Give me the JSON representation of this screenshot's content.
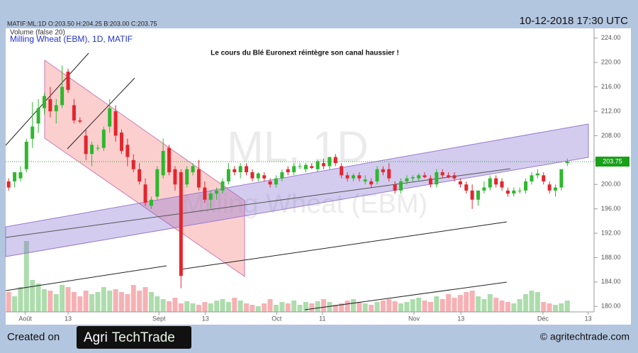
{
  "header": {
    "info": "MATIF:ML:1D O:203.50 H:204.25 B:203.00 C:203.75",
    "date": "10-12-2018 17:30 UTC"
  },
  "chart_data": {
    "type": "candlestick",
    "subtitle": "Volume (false 20)",
    "title": "Milling Wheat (EBM), 1D, MATIF",
    "annotation": "Le cours du Blé Euronext réintègre son canal haussier !",
    "watermark": [
      "ML, 1D",
      "Milling Wheat (EBM)"
    ],
    "up_color": "#2eb82e",
    "down_color": "#e3262e",
    "volume_up_color": "#9fd69f",
    "volume_down_color": "#f5a3a8",
    "last_color": "#18a018",
    "xlim": [
      -0.5,
      98.5
    ],
    "xticks": [
      {
        "value": 2.8,
        "label": "Août"
      },
      {
        "value": 10,
        "label": "13"
      },
      {
        "value": 25.3,
        "label": "Sept"
      },
      {
        "value": 33.1,
        "label": "13"
      },
      {
        "value": 45.1,
        "label": "Oct"
      },
      {
        "value": 52.8,
        "label": "11"
      },
      {
        "value": 68.2,
        "label": "Nov"
      },
      {
        "value": 76.1,
        "label": "13"
      },
      {
        "value": 89.9,
        "label": "Déc"
      },
      {
        "value": 97.5,
        "label": "13"
      }
    ],
    "ylim": [
      179.1,
      225.6
    ],
    "yticks": [
      {
        "value": 180,
        "label": "180.00"
      },
      {
        "value": 184,
        "label": "184.00"
      },
      {
        "value": 188,
        "label": "188.00"
      },
      {
        "value": 192,
        "label": "192.00"
      },
      {
        "value": 196,
        "label": "196.00"
      },
      {
        "value": 200,
        "label": "200.00"
      },
      {
        "value": 204,
        "label": "204.00"
      },
      {
        "value": 208,
        "label": "208.00"
      },
      {
        "value": 212,
        "label": "212.00"
      },
      {
        "value": 216,
        "label": "216.00"
      },
      {
        "value": 220,
        "label": "220.00"
      },
      {
        "value": 224,
        "label": "224.00"
      }
    ],
    "volume_ylim": [
      0,
      100
    ],
    "candles": [
      [
        200.5,
        201,
        199,
        199.5
      ],
      [
        200.5,
        202,
        199.5,
        202
      ],
      [
        201,
        203,
        200.5,
        202
      ],
      [
        202.5,
        207.5,
        202,
        207
      ],
      [
        207.5,
        213.5,
        206,
        209.5
      ],
      [
        210,
        214,
        208.5,
        212.5
      ],
      [
        212.5,
        215,
        211.5,
        214.5
      ],
      [
        214,
        216,
        211,
        212
      ],
      [
        212,
        214,
        210,
        213
      ],
      [
        213,
        219.5,
        212.5,
        216
      ],
      [
        218.5,
        219,
        215,
        215.5
      ],
      [
        213,
        214,
        210,
        210.5
      ],
      [
        210.5,
        211,
        210,
        210.3
      ],
      [
        208,
        209,
        204,
        205
      ],
      [
        205,
        207,
        203,
        206.5
      ],
      [
        206,
        206.5,
        205.5,
        206
      ],
      [
        206,
        209.5,
        205.5,
        209
      ],
      [
        209.5,
        214,
        208.5,
        212.5
      ],
      [
        212,
        213,
        207,
        208
      ],
      [
        208.5,
        209,
        205,
        205.5
      ],
      [
        206.5,
        207.5,
        203,
        204.5
      ],
      [
        204,
        205,
        202,
        202.5
      ],
      [
        202.5,
        203.5,
        200,
        200.5
      ],
      [
        200,
        201,
        196.5,
        197
      ],
      [
        196.5,
        198,
        196,
        197.5
      ],
      [
        198,
        203,
        197.5,
        202.5
      ],
      [
        201.5,
        207.5,
        201,
        205.5
      ],
      [
        206,
        206.5,
        201.5,
        202
      ],
      [
        202.5,
        203,
        199,
        200
      ],
      [
        202,
        202.5,
        183,
        185
      ],
      [
        200,
        203,
        199.5,
        202.5
      ],
      [
        202,
        203.5,
        201.5,
        203
      ],
      [
        202.5,
        204,
        199,
        199.5
      ],
      [
        199.5,
        200.5,
        197,
        197.5
      ],
      [
        197.5,
        199,
        196,
        198.5
      ],
      [
        198.5,
        199.5,
        197.5,
        199
      ],
      [
        199,
        201,
        198.5,
        200.5
      ],
      [
        200.5,
        203.5,
        200,
        202.5
      ],
      [
        202.5,
        203,
        201.5,
        202
      ],
      [
        202,
        203.5,
        201,
        203
      ],
      [
        203,
        203.5,
        201.5,
        202
      ],
      [
        202,
        202.5,
        200.5,
        201
      ],
      [
        201,
        202,
        200.5,
        201.8
      ],
      [
        201.5,
        202,
        200.5,
        201
      ],
      [
        200.5,
        201,
        199.5,
        200
      ],
      [
        200,
        201.5,
        199.5,
        201
      ],
      [
        201,
        202.5,
        200.5,
        202
      ],
      [
        202.5,
        203,
        201.5,
        202
      ],
      [
        202,
        203.5,
        201.5,
        203
      ],
      [
        203,
        203.5,
        202.5,
        203
      ],
      [
        202.5,
        203.5,
        202,
        203.2
      ],
      [
        203,
        203.5,
        202.5,
        202.7
      ],
      [
        202.5,
        204,
        202,
        203.8
      ],
      [
        203.5,
        204.2,
        202.5,
        203
      ],
      [
        203,
        204.5,
        202.5,
        204.5
      ],
      [
        204.5,
        205,
        203,
        203.5
      ],
      [
        203,
        203.5,
        201,
        201.5
      ],
      [
        201.5,
        202,
        200.5,
        201
      ],
      [
        201,
        201.8,
        200.5,
        201.5
      ],
      [
        201.5,
        202,
        200.5,
        201
      ],
      [
        200.5,
        201.5,
        200,
        200.8
      ],
      [
        200.5,
        201,
        199.5,
        200
      ],
      [
        200.5,
        203,
        200,
        202.5
      ],
      [
        202.5,
        203,
        201.5,
        202
      ],
      [
        202.5,
        203.5,
        200.5,
        201
      ],
      [
        200,
        200.5,
        198.5,
        199
      ],
      [
        199,
        201,
        198.5,
        200.5
      ],
      [
        200.5,
        201.5,
        200,
        201
      ],
      [
        201,
        201.5,
        200.5,
        201.2
      ],
      [
        201,
        201.8,
        200.5,
        201.5
      ],
      [
        201.5,
        202,
        201,
        201.2
      ],
      [
        201,
        201.5,
        199.5,
        200
      ],
      [
        200,
        202.5,
        199.5,
        202
      ],
      [
        202,
        202.5,
        201,
        201.5
      ],
      [
        201.5,
        202,
        201,
        201.2
      ],
      [
        201.5,
        202,
        200.5,
        201
      ],
      [
        200.5,
        201,
        199.5,
        200
      ],
      [
        200,
        200.5,
        198.5,
        199
      ],
      [
        199,
        200,
        196,
        197.5
      ],
      [
        197.5,
        199,
        196.5,
        199
      ],
      [
        199,
        200.5,
        198.5,
        199.5
      ],
      [
        199.5,
        201.5,
        199,
        201
      ],
      [
        201,
        201.5,
        199.5,
        200
      ],
      [
        200.5,
        201,
        199,
        199.5
      ],
      [
        199,
        199.5,
        198,
        198.5
      ],
      [
        198.5,
        199.5,
        198,
        199
      ],
      [
        199,
        199.5,
        198.5,
        199
      ],
      [
        199,
        201,
        198.5,
        200.5
      ],
      [
        200.5,
        202,
        200,
        201.5
      ],
      [
        201.5,
        202.5,
        201,
        201.8
      ],
      [
        201.5,
        202,
        200,
        200.5
      ],
      [
        200,
        200.5,
        198.5,
        199
      ],
      [
        199,
        200,
        198,
        199.5
      ],
      [
        199.5,
        202.5,
        199,
        202.5
      ],
      [
        203.5,
        204.25,
        203,
        203.75
      ]
    ],
    "volumes": [
      28,
      22,
      35,
      100,
      45,
      40,
      32,
      30,
      25,
      38,
      35,
      28,
      22,
      30,
      25,
      28,
      35,
      30,
      32,
      28,
      25,
      38,
      30,
      35,
      28,
      22,
      18,
      15,
      20,
      12,
      15,
      12,
      10,
      14,
      12,
      16,
      18,
      14,
      20,
      16,
      12,
      10,
      8,
      12,
      18,
      10,
      14,
      12,
      16,
      10,
      14,
      12,
      15,
      18,
      14,
      10,
      12,
      16,
      18,
      14,
      12,
      10,
      14,
      16,
      18,
      15,
      12,
      14,
      18,
      20,
      16,
      14,
      22,
      18,
      25,
      20,
      24,
      28,
      30,
      22,
      18,
      25,
      20,
      16,
      14,
      12,
      18,
      25,
      30,
      28,
      14,
      12,
      10,
      12,
      16
    ]
  },
  "footer": {
    "created": "Created on",
    "logo": [
      "Agri",
      "TechTrade"
    ],
    "site": "© agritechtrade.com"
  }
}
